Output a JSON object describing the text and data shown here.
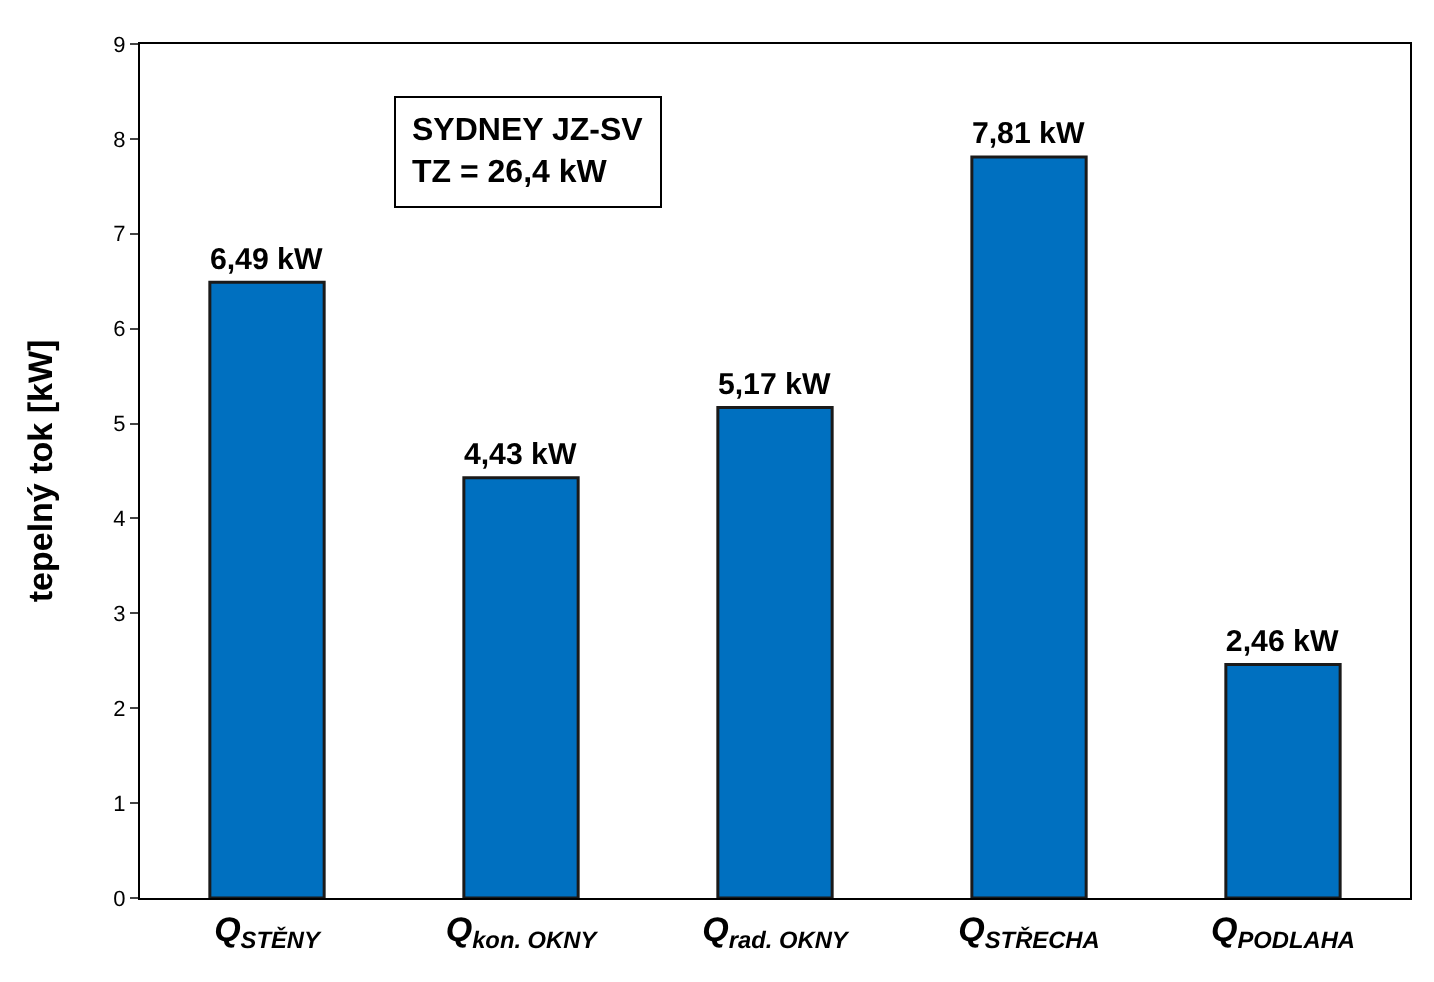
{
  "chart_data": {
    "type": "bar",
    "ylabel": "tepelný tok [kW]",
    "categories": [
      "Q$_{STĚNY}$",
      "Q$_{kon. OKNY}$",
      "Q$_{rad. OKNY}$",
      "Q$_{STŘECHA}$",
      "Q$_{PODLAHA}$"
    ],
    "values": [
      6.49,
      4.43,
      5.17,
      7.81,
      2.46
    ],
    "value_labels": [
      "6,49 kW",
      "4,43 kW",
      "5,17 kW",
      "7,81 kW",
      "2,46 kW"
    ],
    "color": "#0070c0",
    "ylim": [
      0,
      9
    ],
    "yticks": [
      0,
      1,
      2,
      3,
      4,
      5,
      6,
      7,
      8,
      9
    ],
    "grid": false,
    "annotations": [
      "SYDNEY JZ-SV\nTZ = 26,4 kW"
    ]
  }
}
